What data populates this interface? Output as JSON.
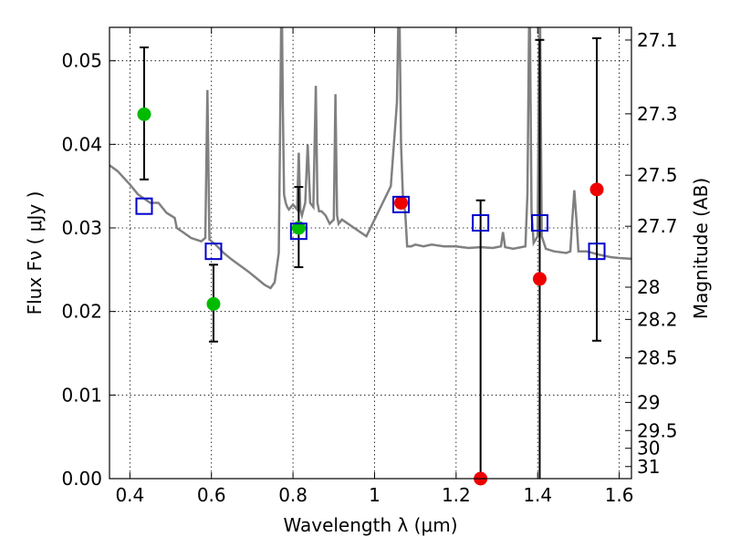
{
  "chart_data": {
    "type": "scatter",
    "title": "",
    "xlabel": "Wavelength  λ (μm)",
    "ylabel": "Flux  Fν  ( μJy )",
    "y2label": "Magnitude (AB)",
    "xlim": [
      0.35,
      1.63
    ],
    "ylim": [
      0.0,
      0.054
    ],
    "grid": true,
    "x_ticks": [
      0.4,
      0.6,
      0.8,
      1.0,
      1.2,
      1.4,
      1.6
    ],
    "x_tick_labels": [
      "0.4",
      "0.6",
      "0.8",
      "1",
      "1.2",
      "1.4",
      "1.6"
    ],
    "y_ticks": [
      0.0,
      0.01,
      0.02,
      0.03,
      0.04,
      0.05
    ],
    "y_tick_labels": [
      "0.00",
      "0.01",
      "0.02",
      "0.03",
      "0.04",
      "0.05"
    ],
    "y2_ticks": [
      27.1,
      27.3,
      27.5,
      27.7,
      28,
      28.2,
      28.5,
      29,
      29.5,
      30,
      31
    ],
    "y2_tick_labels": [
      "27.1",
      "27.3",
      "27.5",
      "27.7",
      "28",
      "28.2",
      "28.5",
      "29",
      "29.5",
      "30",
      "31"
    ],
    "colors": {
      "model": "#808080",
      "observed_detection": "#00bb00",
      "observed_red": "#ee0000",
      "model_photometry": "#0000cc",
      "errorbar": "#000000"
    },
    "model_spectrum": {
      "x": [
        0.35,
        0.37,
        0.4,
        0.42,
        0.45,
        0.47,
        0.49,
        0.51,
        0.515,
        0.53,
        0.55,
        0.575,
        0.585,
        0.59,
        0.595,
        0.61,
        0.63,
        0.65,
        0.67,
        0.69,
        0.71,
        0.73,
        0.745,
        0.755,
        0.765,
        0.768,
        0.772,
        0.775,
        0.778,
        0.782,
        0.786,
        0.79,
        0.8,
        0.81,
        0.814,
        0.818,
        0.822,
        0.83,
        0.836,
        0.842,
        0.85,
        0.856,
        0.86,
        0.864,
        0.87,
        0.88,
        0.89,
        0.9,
        0.904,
        0.908,
        0.912,
        0.92,
        0.95,
        0.98,
        1.0,
        1.02,
        1.04,
        1.055,
        1.06,
        1.065,
        1.07,
        1.075,
        1.08,
        1.09,
        1.1,
        1.12,
        1.14,
        1.17,
        1.2,
        1.23,
        1.26,
        1.29,
        1.31,
        1.315,
        1.32,
        1.34,
        1.37,
        1.375,
        1.38,
        1.385,
        1.39,
        1.4,
        1.405,
        1.41,
        1.42,
        1.44,
        1.47,
        1.48,
        1.485,
        1.49,
        1.495,
        1.5,
        1.52,
        1.55,
        1.58,
        1.6,
        1.63
      ],
      "y": [
        0.0375,
        0.0368,
        0.0352,
        0.034,
        0.033,
        0.033,
        0.0318,
        0.0312,
        0.03,
        0.0295,
        0.0288,
        0.0284,
        0.0288,
        0.0465,
        0.0286,
        0.028,
        0.027,
        0.0262,
        0.0255,
        0.0248,
        0.024,
        0.0232,
        0.0228,
        0.0235,
        0.027,
        0.04,
        0.06,
        0.045,
        0.034,
        0.033,
        0.0325,
        0.0322,
        0.0328,
        0.0322,
        0.039,
        0.0322,
        0.0315,
        0.033,
        0.04,
        0.033,
        0.0325,
        0.047,
        0.033,
        0.032,
        0.032,
        0.0315,
        0.0305,
        0.031,
        0.046,
        0.0315,
        0.0305,
        0.031,
        0.03,
        0.029,
        0.031,
        0.033,
        0.035,
        0.045,
        0.06,
        0.04,
        0.033,
        0.032,
        0.0278,
        0.0278,
        0.028,
        0.0278,
        0.028,
        0.0278,
        0.0278,
        0.0276,
        0.0277,
        0.0276,
        0.0278,
        0.0295,
        0.0277,
        0.0275,
        0.0278,
        0.034,
        0.06,
        0.032,
        0.0282,
        0.029,
        0.06,
        0.029,
        0.0275,
        0.0272,
        0.027,
        0.0272,
        0.031,
        0.0345,
        0.031,
        0.0272,
        0.0272,
        0.0268,
        0.0265,
        0.0264,
        0.0263
      ]
    },
    "observed_points": [
      {
        "x": 0.435,
        "y": 0.0436,
        "yerr_low": 0.0078,
        "yerr_high": 0.008,
        "color": "observed_detection"
      },
      {
        "x": 0.605,
        "y": 0.0209,
        "yerr_low": 0.0045,
        "yerr_high": 0.0047,
        "color": "observed_detection"
      },
      {
        "x": 0.814,
        "y": 0.03,
        "yerr_low": 0.0047,
        "yerr_high": 0.0049,
        "color": "observed_detection"
      },
      {
        "x": 1.065,
        "y": 0.033,
        "yerr_low": 0.0,
        "yerr_high": 0.0,
        "color": "observed_red"
      },
      {
        "x": 1.26,
        "y": 0.0,
        "yerr_low": 0.0,
        "yerr_high": 0.0333,
        "color": "observed_red"
      },
      {
        "x": 1.405,
        "y": 0.0239,
        "yerr_low": 0.0239,
        "yerr_high": 0.0286,
        "color": "observed_red"
      },
      {
        "x": 1.545,
        "y": 0.0346,
        "yerr_low": 0.0181,
        "yerr_high": 0.0181,
        "color": "observed_red"
      }
    ],
    "model_photometry": {
      "x": [
        0.435,
        0.605,
        0.814,
        1.065,
        1.26,
        1.405,
        1.545
      ],
      "y": [
        0.0326,
        0.0272,
        0.0296,
        0.0328,
        0.0306,
        0.0306,
        0.0272
      ]
    }
  }
}
